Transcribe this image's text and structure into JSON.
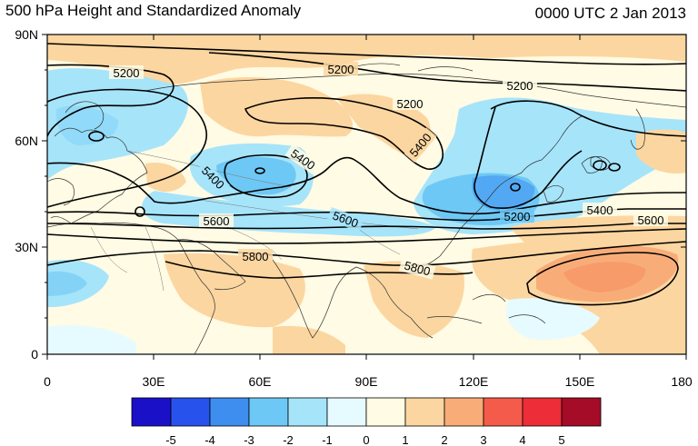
{
  "title": "500 hPa Height and Standardized Anomaly",
  "valid_time": "0000 UTC 2 Jan 2013",
  "map": {
    "lat_ticks": [
      "90N",
      "60N",
      "30N",
      "0"
    ],
    "lon_ticks": [
      "0",
      "30E",
      "60E",
      "90E",
      "120E",
      "150E",
      "180"
    ],
    "contour_labels": [
      "5200",
      "5200",
      "5200",
      "5200",
      "5200",
      "5400",
      "5400",
      "5400",
      "5400",
      "5600",
      "5600",
      "5600",
      "5800",
      "5800"
    ]
  },
  "colorbar": {
    "colors": [
      "#1a10c8",
      "#2852ec",
      "#3e8ef0",
      "#6ec8f5",
      "#a6e4fa",
      "#e6fbff",
      "#fffbe4",
      "#fcd6a0",
      "#f8ad78",
      "#f55b4a",
      "#ed2d38",
      "#a40c28"
    ],
    "labels": [
      "-5",
      "-4",
      "-3",
      "-2",
      "-1",
      "0",
      "1",
      "2",
      "3",
      "4",
      "5"
    ]
  }
}
